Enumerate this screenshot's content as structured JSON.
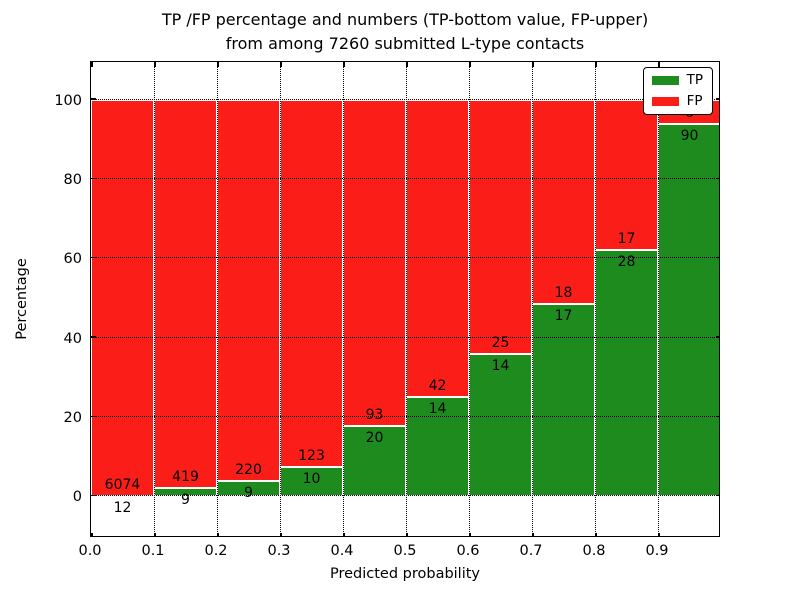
{
  "title": {
    "line1": "TP /FP percentage and numbers (TP-bottom value, FP-upper)",
    "line2": "from among 7260 submitted L-type contacts"
  },
  "chart_data": {
    "type": "bar",
    "stacked": true,
    "normalized_to_percent": true,
    "title": "TP /FP percentage and numbers (TP-bottom value, FP-upper) from among 7260 submitted L-type contacts",
    "xlabel": "Predicted probability",
    "ylabel": "Percentage",
    "total_contacts": 7260,
    "categories": [
      "0.0-0.1",
      "0.1-0.2",
      "0.2-0.3",
      "0.3-0.4",
      "0.4-0.5",
      "0.5-0.6",
      "0.6-0.7",
      "0.7-0.8",
      "0.8-0.9",
      "0.9-1.0"
    ],
    "bar_start_x": [
      0.0,
      0.1,
      0.2,
      0.3,
      0.4,
      0.5,
      0.6,
      0.7,
      0.8,
      0.9
    ],
    "bar_width_x": 0.1,
    "series": [
      {
        "name": "TP",
        "color": "#1e8b1e",
        "counts": [
          12,
          9,
          9,
          10,
          20,
          14,
          14,
          17,
          28,
          90
        ]
      },
      {
        "name": "FP",
        "color": "#fb1d17",
        "counts": [
          6074,
          419,
          220,
          123,
          93,
          42,
          25,
          18,
          17,
          6
        ]
      }
    ],
    "x_ticks": [
      "0.0",
      "0.1",
      "0.2",
      "0.3",
      "0.4",
      "0.5",
      "0.6",
      "0.7",
      "0.8",
      "0.9"
    ],
    "y_ticks": [
      0,
      20,
      40,
      60,
      80,
      100
    ],
    "xlim": [
      0.0,
      1.0
    ],
    "ylim": [
      -10,
      110
    ],
    "grid": true,
    "grid_style": "dotted",
    "legend_position": "upper right",
    "bar_edge_color": "#ffffff"
  },
  "legend": {
    "items": [
      {
        "label": "TP",
        "color": "#1e8b1e"
      },
      {
        "label": "FP",
        "color": "#fb1d17"
      }
    ]
  }
}
